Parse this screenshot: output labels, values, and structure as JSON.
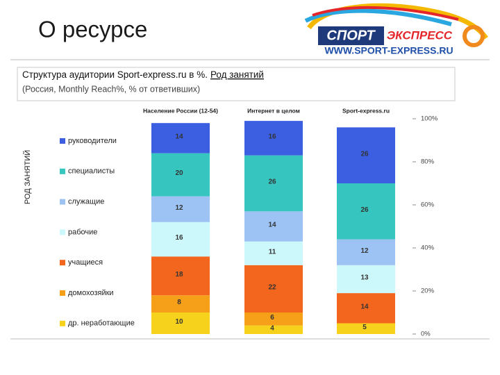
{
  "header": {
    "title": "О ресурсе",
    "logo_word1": "СПОРТ",
    "logo_word2": "ЭКСПРЕСС",
    "logo_url": "WWW.SPORT-EXPRESS.RU"
  },
  "chart_data": {
    "type": "stacked-bar",
    "title": "Структура аудитории Sport-express.ru в %.",
    "title_link": "Род занятий",
    "subtitle": "(Россия, Monthly Reach%, % от ответивших)",
    "y_label": "РОД ЗАНЯТИЙ",
    "categories": [
      "Население России (12-54)",
      "Интернет в целом",
      "Sport-express.ru"
    ],
    "series": [
      {
        "name": "др. неработающие",
        "color": "#f7d21c",
        "values": [
          10,
          4,
          5
        ]
      },
      {
        "name": "домохозяйки",
        "color": "#f6a01a",
        "values": [
          8,
          6,
          null
        ]
      },
      {
        "name": "учащиеся",
        "color": "#f2661e",
        "values": [
          18,
          22,
          14
        ]
      },
      {
        "name": "рабочие",
        "color": "#cdf8fb",
        "values": [
          16,
          11,
          13
        ]
      },
      {
        "name": "служащие",
        "color": "#9cc3f3",
        "values": [
          12,
          14,
          12
        ]
      },
      {
        "name": "специалисты",
        "color": "#36c6bf",
        "values": [
          20,
          26,
          26
        ]
      },
      {
        "name": "руководители",
        "color": "#3c5fe2",
        "values": [
          14,
          16,
          26
        ]
      }
    ],
    "ylim": [
      0,
      100
    ],
    "yticks": [
      {
        "value": 0,
        "label": "0%"
      },
      {
        "value": 20,
        "label": "20%"
      },
      {
        "value": 40,
        "label": "40%"
      },
      {
        "value": 60,
        "label": "60%"
      },
      {
        "value": 80,
        "label": "80%"
      },
      {
        "value": 100,
        "label": "100%"
      }
    ],
    "grid": false
  }
}
